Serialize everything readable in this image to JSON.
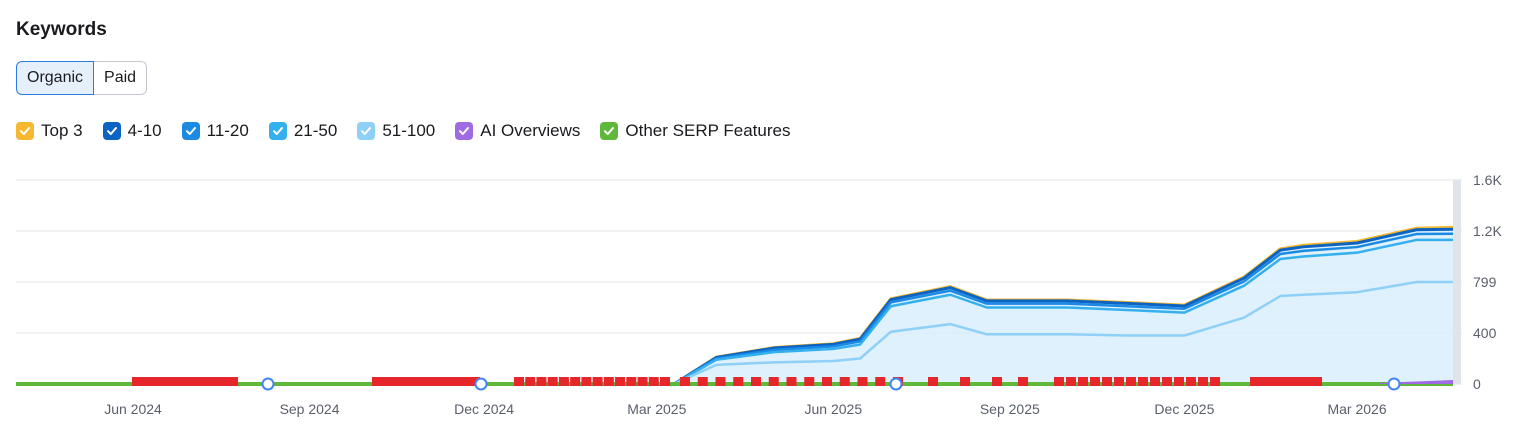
{
  "header": {
    "title": "Keywords"
  },
  "toggle": {
    "organic": "Organic",
    "paid": "Paid",
    "active": "organic"
  },
  "legend": [
    {
      "label": "Top 3",
      "color": "#f5b82e"
    },
    {
      "label": "4-10",
      "color": "#0b63c4"
    },
    {
      "label": "11-20",
      "color": "#1a8ae5"
    },
    {
      "label": "21-50",
      "color": "#35b0ef"
    },
    {
      "label": "51-100",
      "color": "#8fd0f7"
    },
    {
      "label": "AI Overviews",
      "color": "#a06ae3"
    },
    {
      "label": "Other SERP Features",
      "color": "#5fb83a"
    }
  ],
  "chart_data": {
    "type": "area",
    "x_tick_labels": [
      "Jun 2024",
      "Sep 2024",
      "Dec 2024",
      "Mar 2025",
      "Jun 2025",
      "Sep 2025",
      "Dec 2025",
      "Mar 2026"
    ],
    "y_tick_labels": [
      "0",
      "400",
      "799",
      "1.2K",
      "1.6K"
    ],
    "ylim": [
      0,
      1600
    ],
    "grid": true,
    "stacked": true,
    "x": [
      "2025-03-10",
      "2025-04-01",
      "2025-05-01",
      "2025-06-01",
      "2025-06-15",
      "2025-07-01",
      "2025-08-01",
      "2025-08-20",
      "2025-09-01",
      "2025-10-01",
      "2025-11-01",
      "2025-12-01",
      "2026-01-01",
      "2026-01-20",
      "2026-02-01",
      "2026-03-01",
      "2026-04-01",
      "2026-04-20"
    ],
    "series": [
      {
        "name": "Top 3",
        "values": [
          0,
          3,
          4,
          5,
          6,
          7,
          8,
          7,
          7,
          7,
          7,
          7,
          8,
          10,
          12,
          12,
          12,
          14
        ]
      },
      {
        "name": "4-10",
        "values": [
          0,
          8,
          14,
          16,
          18,
          22,
          24,
          22,
          22,
          22,
          22,
          22,
          26,
          30,
          32,
          32,
          34,
          36
        ]
      },
      {
        "name": "11-20",
        "values": [
          0,
          10,
          18,
          20,
          24,
          30,
          32,
          30,
          30,
          30,
          30,
          30,
          34,
          40,
          44,
          44,
          46,
          48
        ]
      },
      {
        "name": "21-50",
        "values": [
          0,
          40,
          80,
          95,
          110,
          200,
          230,
          210,
          210,
          210,
          200,
          180,
          250,
          290,
          300,
          310,
          330,
          330
        ]
      },
      {
        "name": "51-100",
        "values": [
          0,
          150,
          170,
          180,
          200,
          410,
          470,
          390,
          390,
          390,
          380,
          380,
          520,
          690,
          700,
          720,
          800,
          800
        ]
      },
      {
        "name": "AI Overviews",
        "values": [
          0,
          0,
          0,
          0,
          0,
          0,
          0,
          0,
          0,
          0,
          0,
          0,
          0,
          0,
          0,
          0,
          5,
          20
        ]
      },
      {
        "name": "Other SERP Features",
        "values": [
          0,
          0,
          0,
          0,
          0,
          0,
          0,
          0,
          0,
          0,
          0,
          0,
          0,
          0,
          0,
          0,
          5,
          10
        ]
      }
    ]
  }
}
